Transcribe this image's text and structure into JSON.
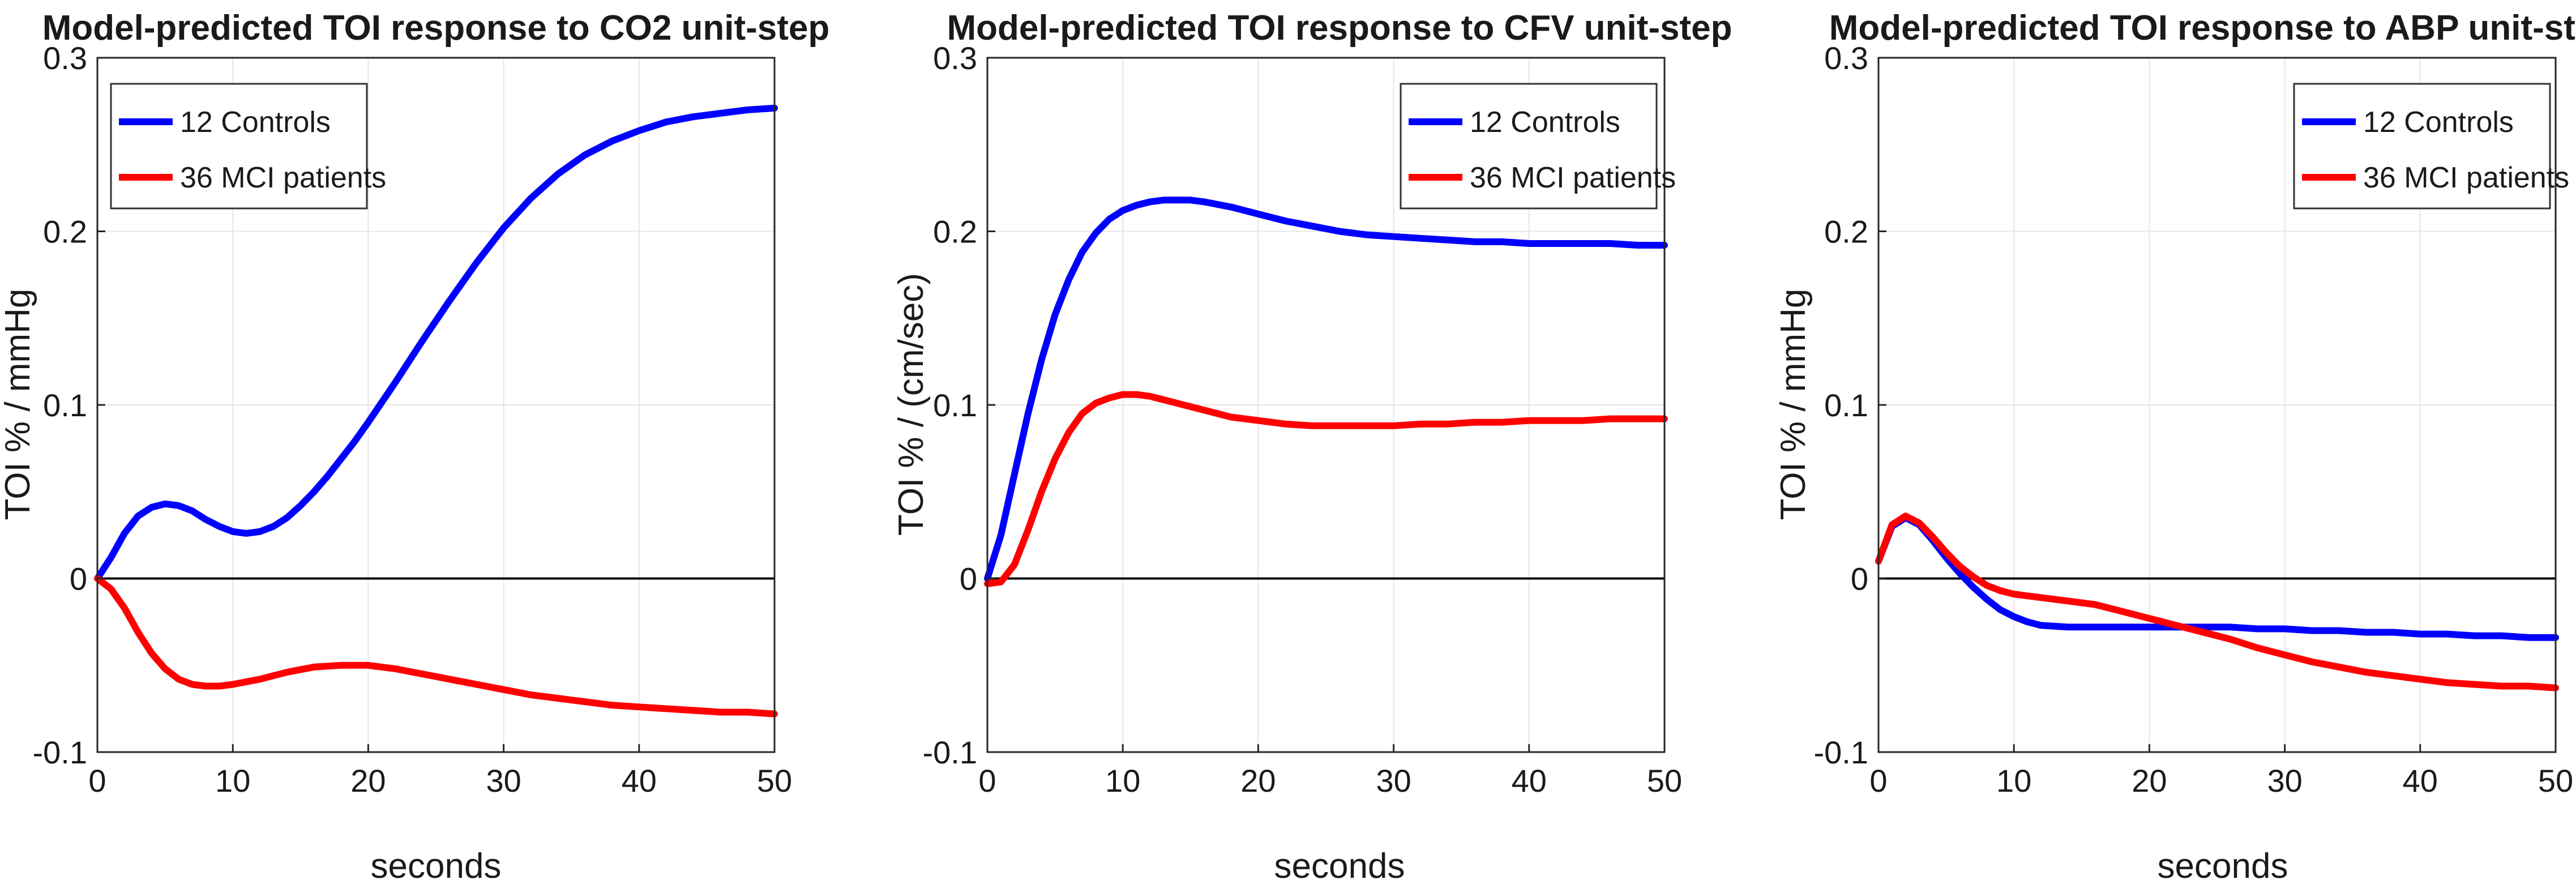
{
  "colors": {
    "controls": "#0000ff",
    "patients": "#ff0000",
    "zero_line": "#000000",
    "grid": "#e6e6e6"
  },
  "chart_data": [
    {
      "type": "line",
      "title": "Model-predicted TOI response to CO2 unit-step",
      "xlabel": "seconds",
      "ylabel": "TOI % / mmHg",
      "xlim": [
        0,
        50
      ],
      "ylim": [
        -0.1,
        0.3
      ],
      "xticks": [
        0,
        10,
        20,
        30,
        40,
        50
      ],
      "yticks": [
        -0.1,
        0,
        0.1,
        0.2,
        0.3
      ],
      "grid": true,
      "legend": "top-left",
      "series": [
        {
          "name": "12 Controls",
          "color": "#0000ff",
          "x": [
            0,
            1,
            2,
            3,
            4,
            5,
            6,
            7,
            8,
            9,
            10,
            11,
            12,
            13,
            14,
            15,
            16,
            17,
            18,
            19,
            20,
            22,
            24,
            26,
            28,
            30,
            32,
            34,
            36,
            38,
            40,
            42,
            44,
            46,
            48,
            50
          ],
          "y": [
            0,
            0.012,
            0.026,
            0.036,
            0.041,
            0.043,
            0.042,
            0.039,
            0.034,
            0.03,
            0.027,
            0.026,
            0.027,
            0.03,
            0.035,
            0.042,
            0.05,
            0.059,
            0.069,
            0.079,
            0.09,
            0.113,
            0.137,
            0.16,
            0.182,
            0.202,
            0.219,
            0.233,
            0.244,
            0.252,
            0.258,
            0.263,
            0.266,
            0.268,
            0.27,
            0.271
          ]
        },
        {
          "name": "36 MCI patients",
          "color": "#ff0000",
          "x": [
            0,
            1,
            2,
            3,
            4,
            5,
            6,
            7,
            8,
            9,
            10,
            12,
            14,
            16,
            18,
            20,
            22,
            24,
            26,
            28,
            30,
            32,
            34,
            36,
            38,
            40,
            42,
            44,
            46,
            48,
            50
          ],
          "y": [
            0,
            -0.006,
            -0.017,
            -0.031,
            -0.043,
            -0.052,
            -0.058,
            -0.061,
            -0.062,
            -0.062,
            -0.061,
            -0.058,
            -0.054,
            -0.051,
            -0.05,
            -0.05,
            -0.052,
            -0.055,
            -0.058,
            -0.061,
            -0.064,
            -0.067,
            -0.069,
            -0.071,
            -0.073,
            -0.074,
            -0.075,
            -0.076,
            -0.077,
            -0.077,
            -0.078
          ]
        }
      ]
    },
    {
      "type": "line",
      "title": "Model-predicted TOI response to CFV unit-step",
      "xlabel": "seconds",
      "ylabel": "TOI % / (cm/sec)",
      "xlim": [
        0,
        50
      ],
      "ylim": [
        -0.1,
        0.3
      ],
      "xticks": [
        0,
        10,
        20,
        30,
        40,
        50
      ],
      "yticks": [
        -0.1,
        0,
        0.1,
        0.2,
        0.3
      ],
      "grid": true,
      "legend": "top-right",
      "series": [
        {
          "name": "12 Controls",
          "color": "#0000ff",
          "x": [
            0,
            1,
            2,
            3,
            4,
            5,
            6,
            7,
            8,
            9,
            10,
            11,
            12,
            13,
            14,
            15,
            16,
            18,
            20,
            22,
            24,
            26,
            28,
            30,
            32,
            34,
            36,
            38,
            40,
            42,
            44,
            46,
            48,
            50
          ],
          "y": [
            0,
            0.025,
            0.06,
            0.095,
            0.126,
            0.152,
            0.172,
            0.188,
            0.199,
            0.207,
            0.212,
            0.215,
            0.217,
            0.218,
            0.218,
            0.218,
            0.217,
            0.214,
            0.21,
            0.206,
            0.203,
            0.2,
            0.198,
            0.197,
            0.196,
            0.195,
            0.194,
            0.194,
            0.193,
            0.193,
            0.193,
            0.193,
            0.192,
            0.192
          ]
        },
        {
          "name": "36 MCI patients",
          "color": "#ff0000",
          "x": [
            0,
            1,
            2,
            3,
            4,
            5,
            6,
            7,
            8,
            9,
            10,
            11,
            12,
            13,
            14,
            16,
            18,
            20,
            22,
            24,
            26,
            28,
            30,
            32,
            34,
            36,
            38,
            40,
            42,
            44,
            46,
            48,
            50
          ],
          "y": [
            -0.003,
            -0.002,
            0.008,
            0.028,
            0.05,
            0.069,
            0.084,
            0.095,
            0.101,
            0.104,
            0.106,
            0.106,
            0.105,
            0.103,
            0.101,
            0.097,
            0.093,
            0.091,
            0.089,
            0.088,
            0.088,
            0.088,
            0.088,
            0.089,
            0.089,
            0.09,
            0.09,
            0.091,
            0.091,
            0.091,
            0.092,
            0.092,
            0.092
          ]
        }
      ]
    },
    {
      "type": "line",
      "title": "Model-predicted TOI response to ABP unit-step",
      "xlabel": "seconds",
      "ylabel": "TOI % / mmHg",
      "xlim": [
        0,
        50
      ],
      "ylim": [
        -0.1,
        0.3
      ],
      "xticks": [
        0,
        10,
        20,
        30,
        40,
        50
      ],
      "yticks": [
        -0.1,
        0,
        0.1,
        0.2,
        0.3
      ],
      "grid": true,
      "legend": "top-right",
      "series": [
        {
          "name": "12 Controls",
          "color": "#0000ff",
          "x": [
            0,
            1,
            2,
            3,
            4,
            5,
            6,
            7,
            8,
            9,
            10,
            11,
            12,
            14,
            16,
            18,
            20,
            22,
            24,
            26,
            28,
            30,
            32,
            34,
            36,
            38,
            40,
            42,
            44,
            46,
            48,
            50
          ],
          "y": [
            0.01,
            0.03,
            0.035,
            0.031,
            0.022,
            0.012,
            0.003,
            -0.005,
            -0.012,
            -0.018,
            -0.022,
            -0.025,
            -0.027,
            -0.028,
            -0.028,
            -0.028,
            -0.028,
            -0.028,
            -0.028,
            -0.028,
            -0.029,
            -0.029,
            -0.03,
            -0.03,
            -0.031,
            -0.031,
            -0.032,
            -0.032,
            -0.033,
            -0.033,
            -0.034,
            -0.034
          ]
        },
        {
          "name": "36 MCI patients",
          "color": "#ff0000",
          "x": [
            0,
            1,
            2,
            3,
            4,
            5,
            6,
            7,
            8,
            9,
            10,
            11,
            12,
            14,
            16,
            18,
            20,
            22,
            24,
            26,
            28,
            30,
            32,
            34,
            36,
            38,
            40,
            42,
            44,
            46,
            48,
            50
          ],
          "y": [
            0.01,
            0.031,
            0.036,
            0.032,
            0.024,
            0.015,
            0.007,
            0.001,
            -0.004,
            -0.007,
            -0.009,
            -0.01,
            -0.011,
            -0.013,
            -0.015,
            -0.019,
            -0.023,
            -0.027,
            -0.031,
            -0.035,
            -0.04,
            -0.044,
            -0.048,
            -0.051,
            -0.054,
            -0.056,
            -0.058,
            -0.06,
            -0.061,
            -0.062,
            -0.062,
            -0.063
          ]
        }
      ]
    }
  ]
}
